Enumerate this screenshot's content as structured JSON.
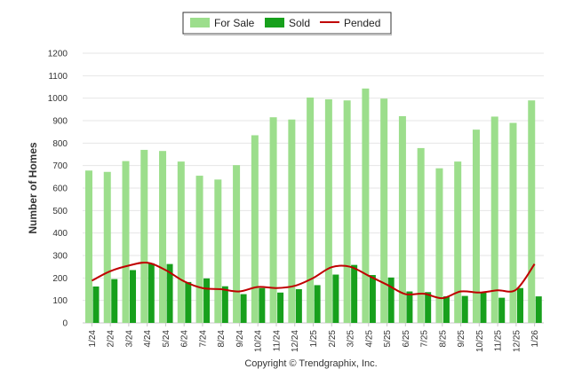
{
  "chart_data": {
    "type": "bar",
    "title": "",
    "xlabel": "",
    "ylabel": "Number of Homes",
    "ylim": [
      0,
      1200
    ],
    "yticks": [
      0,
      100,
      200,
      300,
      400,
      500,
      600,
      700,
      800,
      900,
      1000,
      1100,
      1200
    ],
    "grid": true,
    "legend_position": "top-center",
    "categories": [
      "1/24",
      "2/24",
      "3/24",
      "4/24",
      "5/24",
      "6/24",
      "7/24",
      "8/24",
      "9/24",
      "10/24",
      "11/24",
      "12/24",
      "1/25",
      "2/25",
      "3/25",
      "4/25",
      "5/25",
      "6/25",
      "7/25",
      "8/25",
      "9/25",
      "10/25",
      "11/25",
      "12/25",
      "1/26"
    ],
    "series": [
      {
        "name": "For Sale",
        "kind": "bar",
        "color": "#9cde8c",
        "values": [
          678,
          672,
          720,
          770,
          765,
          718,
          655,
          638,
          702,
          835,
          915,
          905,
          1003,
          995,
          990,
          1043,
          998,
          920,
          778,
          688,
          718,
          860,
          918,
          890,
          990
        ]
      },
      {
        "name": "Sold",
        "kind": "bar",
        "color": "#17a01c",
        "values": [
          162,
          195,
          235,
          265,
          262,
          182,
          198,
          163,
          128,
          155,
          135,
          150,
          168,
          215,
          258,
          213,
          202,
          140,
          137,
          118,
          120,
          138,
          112,
          155,
          118
        ]
      },
      {
        "name": "Pended",
        "kind": "line",
        "color": "#c00000",
        "values": [
          188,
          230,
          255,
          268,
          235,
          185,
          155,
          150,
          140,
          160,
          155,
          165,
          200,
          248,
          250,
          210,
          170,
          128,
          130,
          110,
          140,
          135,
          145,
          148,
          262
        ]
      }
    ],
    "footer": "Copyright © Trendgraphix, Inc."
  }
}
